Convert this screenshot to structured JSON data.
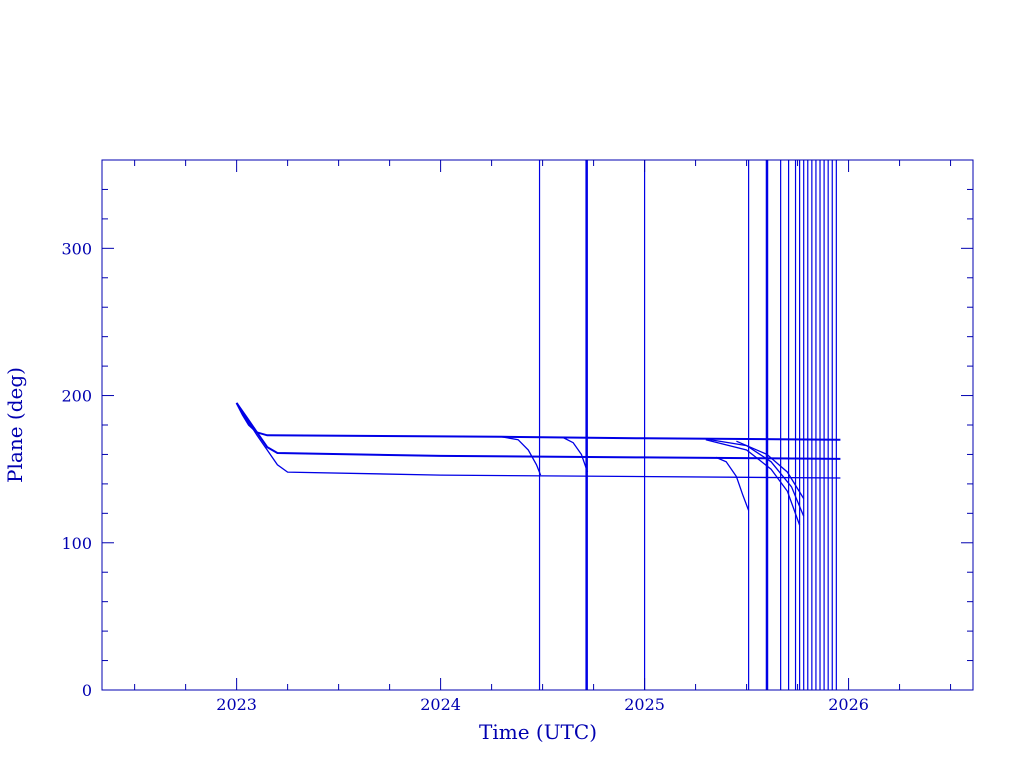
{
  "chart_data": {
    "type": "line",
    "title": "",
    "xlabel": "Time (UTC)",
    "ylabel": "Plane (deg)",
    "xlim": [
      2022.34,
      2026.61
    ],
    "ylim": [
      0,
      360
    ],
    "x_ticks": [
      2023,
      2024,
      2025,
      2026
    ],
    "x_tick_labels": [
      "2023",
      "2024",
      "2025",
      "2026"
    ],
    "y_ticks": [
      0,
      100,
      200,
      300
    ],
    "y_tick_labels": [
      "0",
      "100",
      "200",
      "300"
    ],
    "x_minor_step": 0.25,
    "y_minor_step": 20,
    "grid": false,
    "colors": {
      "axes": "#0000b0",
      "lines": "#0000e6"
    },
    "series": [
      {
        "points": [
          [
            2023.0,
            195
          ],
          [
            2023.03,
            187
          ],
          [
            2023.06,
            180
          ],
          [
            2023.1,
            175
          ],
          [
            2023.15,
            173
          ],
          [
            2024.3,
            172
          ],
          [
            2025.0,
            171
          ],
          [
            2025.96,
            170
          ]
        ]
      },
      {
        "points": [
          [
            2023.0,
            195
          ],
          [
            2023.05,
            185
          ],
          [
            2023.1,
            175
          ],
          [
            2023.15,
            165
          ],
          [
            2023.2,
            161
          ],
          [
            2024.0,
            159
          ],
          [
            2025.0,
            158
          ],
          [
            2025.96,
            157
          ]
        ]
      },
      {
        "points": [
          [
            2023.0,
            195
          ],
          [
            2023.1,
            173
          ],
          [
            2023.15,
            163
          ],
          [
            2023.2,
            153
          ],
          [
            2023.25,
            148
          ],
          [
            2024.0,
            146
          ],
          [
            2025.96,
            144
          ]
        ]
      },
      {
        "points": [
          [
            2024.3,
            172
          ],
          [
            2024.38,
            170
          ],
          [
            2024.43,
            163
          ],
          [
            2024.47,
            153
          ],
          [
            2024.49,
            146
          ]
        ]
      },
      {
        "points": [
          [
            2024.6,
            171.5
          ],
          [
            2024.65,
            168
          ],
          [
            2024.69,
            160
          ],
          [
            2024.72,
            148
          ]
        ]
      },
      {
        "points": [
          [
            2025.35,
            158
          ],
          [
            2025.4,
            155
          ],
          [
            2025.45,
            145
          ],
          [
            2025.48,
            133
          ],
          [
            2025.51,
            122
          ]
        ]
      },
      {
        "points": [
          [
            2025.3,
            170.5
          ],
          [
            2025.5,
            166
          ],
          [
            2025.62,
            155
          ],
          [
            2025.72,
            138
          ],
          [
            2025.78,
            118
          ]
        ]
      },
      {
        "points": [
          [
            2025.3,
            170
          ],
          [
            2025.5,
            163
          ],
          [
            2025.62,
            150
          ],
          [
            2025.7,
            135
          ],
          [
            2025.76,
            112
          ]
        ]
      },
      {
        "points": [
          [
            2025.45,
            169
          ],
          [
            2025.6,
            160
          ],
          [
            2025.7,
            148
          ],
          [
            2025.78,
            130
          ]
        ]
      }
    ],
    "vertical_events": [
      2024.485,
      2024.716,
      2025.0,
      2025.51,
      2025.6,
      2025.667,
      2025.706,
      2025.74,
      2025.76,
      2025.78,
      2025.8,
      2025.82,
      2025.84,
      2025.86,
      2025.88,
      2025.9,
      2025.92,
      2025.94
    ],
    "thick_events": [
      2024.716,
      2025.6
    ]
  }
}
